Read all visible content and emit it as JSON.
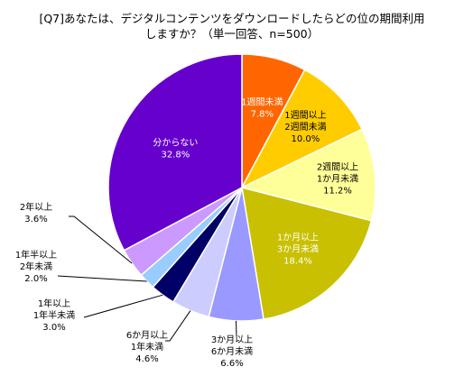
{
  "chart_data": {
    "type": "pie",
    "title_line1": "[Q7]あなたは、デジタルコンテンツをダウンロードしたらどの位の期間利用",
    "title_line2": "しますか？（単一回答、n=500）",
    "slices": [
      {
        "label": [
          "1週間未満"
        ],
        "value_text": "7.8%",
        "value": 7.8,
        "color": "#ff6600",
        "text_color": "#ffffff"
      },
      {
        "label": [
          "1週間以上",
          "2週間未満"
        ],
        "value_text": "10.0%",
        "value": 10.0,
        "color": "#ffcc00",
        "text_color": "#000000"
      },
      {
        "label": [
          "2週間以上",
          "1か月未満"
        ],
        "value_text": "11.2%",
        "value": 11.2,
        "color": "#ffff99",
        "text_color": "#000000"
      },
      {
        "label": [
          "1か月以上",
          "3か月未満"
        ],
        "value_text": "18.4%",
        "value": 18.4,
        "color": "#c8c000",
        "text_color": "#ffffff"
      },
      {
        "label": [
          "3か月以上",
          "6か月未満"
        ],
        "value_text": "6.6%",
        "value": 6.6,
        "color": "#9999ff",
        "text_color": "#000000"
      },
      {
        "label": [
          "6か月以上",
          "1年未満"
        ],
        "value_text": "4.6%",
        "value": 4.6,
        "color": "#ccccff",
        "text_color": "#000000"
      },
      {
        "label": [
          "1年以上",
          "1年半未満"
        ],
        "value_text": "3.0%",
        "value": 3.0,
        "color": "#000066",
        "text_color": "#000000"
      },
      {
        "label": [
          "1年半以上",
          "2年未満"
        ],
        "value_text": "2.0%",
        "value": 2.0,
        "color": "#99ccff",
        "text_color": "#000000"
      },
      {
        "label": [
          "2年以上"
        ],
        "value_text": "3.6%",
        "value": 3.6,
        "color": "#cc99ff",
        "text_color": "#000000"
      },
      {
        "label": [
          "分からない"
        ],
        "value_text": "32.8%",
        "value": 32.8,
        "color": "#6600cc",
        "text_color": "#ffffff"
      }
    ]
  }
}
